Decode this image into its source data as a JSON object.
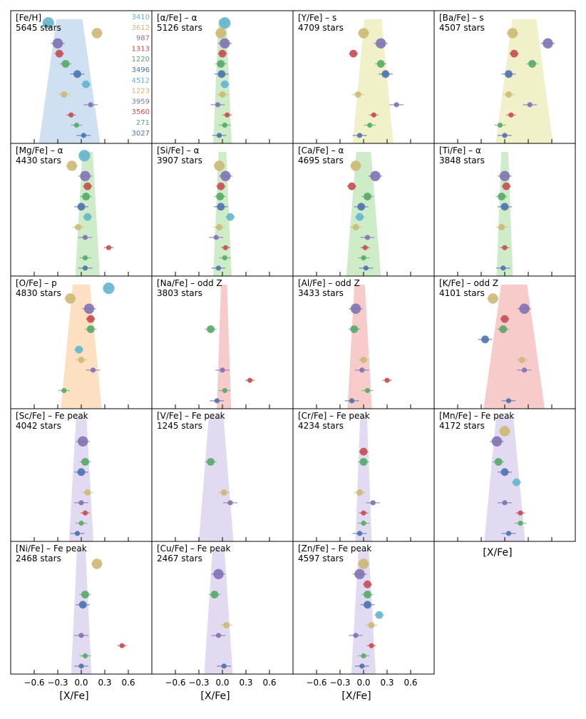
{
  "colors": {
    "blue": "#4c72b0",
    "gold": "#ccb974",
    "purple": "#8172b2",
    "red": "#c44e52",
    "green": "#55a868",
    "cyan": "#64b5cd",
    "kde_fe": "#c6dbef",
    "kde_alpha": "#c7e9c0",
    "kde_s": "#efefbf",
    "kde_p": "#fddbb7",
    "kde_odd": "#f4c2c0",
    "kde_fepeak": "#dcd4ee"
  },
  "legend": {
    "entries": [
      {
        "label": "3410",
        "color": "cyan"
      },
      {
        "label": "3612",
        "color": "gold"
      },
      {
        "label": "987",
        "color": "purple"
      },
      {
        "label": "1313",
        "color": "red"
      },
      {
        "label": "1220",
        "color": "green"
      },
      {
        "label": "3496",
        "color": "blue"
      },
      {
        "label": "4512",
        "color": "cyan"
      },
      {
        "label": "1223",
        "color": "gold"
      },
      {
        "label": "3959",
        "color": "purple"
      },
      {
        "label": "3560",
        "color": "red"
      },
      {
        "label": "271",
        "color": "green"
      },
      {
        "label": "3027",
        "color": "blue"
      }
    ]
  },
  "chart_data": {
    "type": "scatter",
    "layout": "grid 5 rows x 4 columns of violin-style distribution panels",
    "x_axis": {
      "label": "[X/Fe]",
      "ticks": [
        "−0.6",
        "−0.3",
        "0.0",
        "0.3",
        "0.6"
      ],
      "xlim": [
        -0.9,
        0.9
      ]
    },
    "point_order": [
      "3410",
      "3612",
      "987",
      "1313",
      "1220",
      "3496",
      "4512",
      "1223",
      "3959",
      "3560",
      "271",
      "3027"
    ],
    "panels": [
      {
        "title": "[Fe/H]",
        "stars": "5645 stars",
        "kde": "kde_fe",
        "values": [
          -0.42,
          0.2,
          -0.3,
          -0.28,
          -0.2,
          -0.05,
          0.06,
          -0.22,
          0.12,
          -0.13,
          -0.06,
          0.03
        ],
        "kde_peak": -0.15,
        "kde_width": 0.3
      },
      {
        "title": "[α/Fe] – α",
        "stars": "5126 stars",
        "kde": "kde_alpha",
        "values": [
          0.03,
          -0.02,
          0.03,
          0.0,
          -0.02,
          -0.01,
          0.03,
          0.0,
          -0.06,
          0.06,
          0.03,
          -0.04
        ],
        "kde_peak": 0.0,
        "kde_width": 0.09
      },
      {
        "title": "[Y/Fe] – s",
        "stars": "4709 stars",
        "kde": "kde_s",
        "values": [
          null,
          0.0,
          0.22,
          -0.13,
          0.22,
          0.28,
          null,
          -0.07,
          0.42,
          0.13,
          0.08,
          -0.05
        ],
        "kde_peak": 0.12,
        "kde_width": 0.2
      },
      {
        "title": "[Ba/Fe] – s",
        "stars": "4507 stars",
        "kde": "kde_s",
        "values": [
          null,
          0.1,
          0.55,
          0.12,
          0.35,
          0.05,
          null,
          0.05,
          0.32,
          0.08,
          -0.06,
          0.0
        ],
        "kde_peak": 0.25,
        "kde_width": 0.28
      },
      {
        "title": "[Mg/Fe] – α",
        "stars": "4430 stars",
        "kde": "kde_alpha",
        "values": [
          0.04,
          -0.12,
          0.05,
          0.08,
          0.06,
          0.0,
          0.08,
          -0.04,
          0.05,
          0.35,
          0.05,
          0.05
        ],
        "kde_peak": 0.08,
        "kde_width": 0.12
      },
      {
        "title": "[Si/Fe] – α",
        "stars": "3907 stars",
        "kde": "kde_alpha",
        "values": [
          null,
          -0.04,
          0.04,
          -0.02,
          -0.03,
          -0.02,
          0.1,
          -0.04,
          -0.08,
          0.04,
          0.03,
          -0.05
        ],
        "kde_peak": 0.0,
        "kde_width": 0.09
      },
      {
        "title": "[Ca/Fe] – α",
        "stars": "4695 stars",
        "kde": "kde_alpha",
        "values": [
          null,
          -0.1,
          0.15,
          -0.15,
          0.05,
          -0.03,
          -0.05,
          -0.1,
          0.05,
          0.02,
          0.0,
          0.03
        ],
        "kde_peak": 0.0,
        "kde_width": 0.17
      },
      {
        "title": "[Ti/Fe] – α",
        "stars": "3848 stars",
        "kde": "kde_alpha",
        "values": [
          null,
          null,
          0.0,
          0.02,
          -0.04,
          0.0,
          null,
          -0.04,
          null,
          0.0,
          null,
          -0.02
        ],
        "kde_peak": 0.0,
        "kde_width": 0.08
      },
      {
        "title": "[O/Fe] – p",
        "stars": "4830 stars",
        "kde": "kde_p",
        "values": [
          0.35,
          -0.14,
          0.1,
          0.12,
          0.12,
          null,
          -0.03,
          0.0,
          0.15,
          null,
          -0.22,
          null
        ],
        "kde_peak": 0.0,
        "kde_width": 0.2
      },
      {
        "title": "[Na/Fe] – odd Z",
        "stars": "3803 stars",
        "kde": "kde_odd",
        "values": [
          null,
          null,
          null,
          null,
          -0.15,
          null,
          null,
          null,
          0.0,
          0.35,
          0.03,
          -0.07
        ],
        "kde_peak": 0.02,
        "kde_width": 0.07
      },
      {
        "title": "[Al/Fe] – odd Z",
        "stars": "3433 stars",
        "kde": "kde_odd",
        "values": [
          null,
          null,
          -0.1,
          null,
          -0.12,
          null,
          null,
          0.0,
          -0.02,
          0.3,
          0.05,
          -0.15
        ],
        "kde_peak": -0.05,
        "kde_width": 0.12
      },
      {
        "title": "[K/Fe] – odd Z",
        "stars": "4101 stars",
        "kde": "kde_odd",
        "values": [
          null,
          -0.15,
          0.25,
          0.0,
          -0.02,
          -0.25,
          null,
          0.22,
          0.25,
          null,
          null,
          0.05
        ],
        "kde_peak": 0.12,
        "kde_width": 0.3
      },
      {
        "title": "[Sc/Fe] – Fe peak",
        "stars": "4042 stars",
        "kde": "kde_fepeak",
        "values": [
          null,
          null,
          0.02,
          null,
          0.05,
          0.0,
          null,
          0.08,
          0.0,
          0.05,
          0.0,
          -0.05
        ],
        "kde_peak": 0.0,
        "kde_width": 0.12
      },
      {
        "title": "[V/Fe] – Fe peak",
        "stars": "1245 stars",
        "kde": "kde_fepeak",
        "values": [
          null,
          null,
          null,
          null,
          -0.15,
          null,
          null,
          0.02,
          0.1,
          null,
          null,
          null
        ],
        "kde_peak": -0.08,
        "kde_width": 0.17
      },
      {
        "title": "[Cr/Fe] – Fe peak",
        "stars": "4234 stars",
        "kde": "kde_fepeak",
        "values": [
          null,
          null,
          null,
          0.0,
          0.0,
          null,
          null,
          -0.05,
          0.12,
          0.0,
          0.0,
          -0.05
        ],
        "kde_peak": 0.0,
        "kde_width": 0.08
      },
      {
        "title": "[Mn/Fe] – Fe peak",
        "stars": "4172 stars",
        "kde": "kde_fepeak",
        "values": [
          null,
          0.0,
          -0.1,
          null,
          -0.08,
          0.0,
          0.15,
          null,
          0.0,
          0.2,
          0.2,
          0.05
        ],
        "kde_peak": 0.0,
        "kde_width": 0.2
      },
      {
        "title": "[Ni/Fe] – Fe peak",
        "stars": "2468 stars",
        "kde": "kde_fepeak",
        "values": [
          null,
          0.2,
          null,
          null,
          0.05,
          0.02,
          null,
          null,
          0.0,
          0.52,
          0.05,
          0.0
        ],
        "kde_peak": 0.0,
        "kde_width": 0.1
      },
      {
        "title": "[Cu/Fe] – Fe peak",
        "stars": "2467 stars",
        "kde": "kde_fepeak",
        "values": [
          null,
          null,
          -0.05,
          null,
          -0.1,
          null,
          null,
          0.05,
          -0.05,
          null,
          null,
          0.02
        ],
        "kde_peak": -0.05,
        "kde_width": 0.14
      },
      {
        "title": "[Zn/Fe] – Fe peak",
        "stars": "4597 stars",
        "kde": "kde_fepeak",
        "values": [
          null,
          0.0,
          -0.05,
          0.05,
          0.05,
          0.05,
          0.2,
          0.1,
          -0.1,
          0.1,
          0.0,
          -0.02
        ],
        "kde_peak": 0.0,
        "kde_width": 0.12
      }
    ]
  }
}
